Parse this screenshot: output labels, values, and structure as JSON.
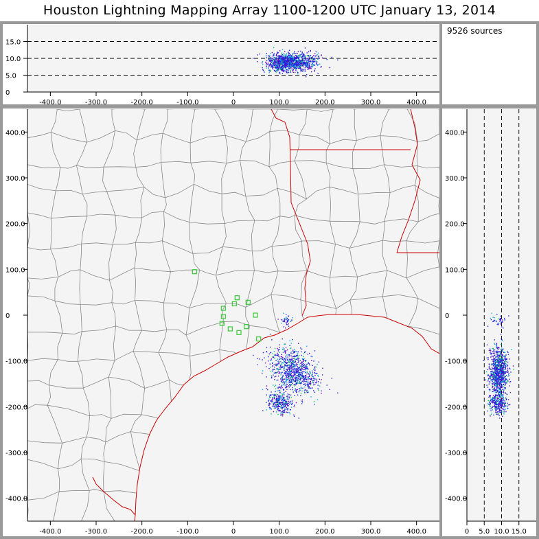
{
  "header": {
    "title": "Houston Lightning Mapping Array   1100-1200 UTC  January 13, 2014"
  },
  "info": {
    "source_count": "9526 sources"
  },
  "colors": {
    "frame": "#999999",
    "plot_bg": "#f4f4f4",
    "county": "#888888",
    "state": "#cc0000",
    "station": "#33cc33"
  },
  "chart_data": [
    {
      "panel": "altitude-vs-x",
      "type": "scatter",
      "xlim": [
        -450,
        450
      ],
      "ylim": [
        0,
        20
      ],
      "x_ticks": [
        {
          "value": -400,
          "label": "-400.0"
        },
        {
          "value": -300,
          "label": "-300.0"
        },
        {
          "value": -200,
          "label": "-200.0"
        },
        {
          "value": -100,
          "label": "-100.0"
        },
        {
          "value": 0,
          "label": "0"
        },
        {
          "value": 100,
          "label": "100.0"
        },
        {
          "value": 200,
          "label": "200.0"
        },
        {
          "value": 300,
          "label": "300.0"
        },
        {
          "value": 400,
          "label": "400.0"
        }
      ],
      "y_ticks": [
        {
          "value": 0,
          "label": "0"
        },
        {
          "value": 5,
          "label": "5.0"
        },
        {
          "value": 10,
          "label": "10.0"
        },
        {
          "value": 15,
          "label": "15.0"
        }
      ],
      "dashed_levels": [
        5,
        10,
        15
      ]
    },
    {
      "panel": "plan-view",
      "type": "scatter",
      "xlim": [
        -450,
        450
      ],
      "ylim": [
        -450,
        450
      ],
      "x_ticks": [
        {
          "value": -400,
          "label": "-400.0"
        },
        {
          "value": -300,
          "label": "-300.0"
        },
        {
          "value": -200,
          "label": "-200.0"
        },
        {
          "value": -100,
          "label": "-100.0"
        },
        {
          "value": 0,
          "label": "0"
        },
        {
          "value": 100,
          "label": "100.0"
        },
        {
          "value": 200,
          "label": "200.0"
        },
        {
          "value": 300,
          "label": "300.0"
        },
        {
          "value": 400,
          "label": "400.0"
        }
      ],
      "y_ticks": [
        {
          "value": -400,
          "label": "-400.0"
        },
        {
          "value": -300,
          "label": "-300.0"
        },
        {
          "value": -200,
          "label": "-200.0"
        },
        {
          "value": -100,
          "label": "-100.0"
        },
        {
          "value": 0,
          "label": "0"
        },
        {
          "value": 100,
          "label": "100.0"
        },
        {
          "value": 200,
          "label": "200.0"
        },
        {
          "value": 300,
          "label": "300.0"
        },
        {
          "value": 400,
          "label": "400.0"
        }
      ],
      "source_clusters": [
        {
          "x": 130,
          "y": -120,
          "sx": 30,
          "sy": 20,
          "n": 900
        },
        {
          "x": 100,
          "y": -190,
          "sx": 15,
          "sy": 11,
          "n": 320
        },
        {
          "x": 115,
          "y": -10,
          "sx": 5,
          "sy": 6,
          "n": 40
        }
      ],
      "stations": [
        {
          "x": -85,
          "y": 95
        },
        {
          "x": -22,
          "y": 15
        },
        {
          "x": 2,
          "y": 25
        },
        {
          "x": 8,
          "y": 38
        },
        {
          "x": 32,
          "y": 28
        },
        {
          "x": -22,
          "y": -3
        },
        {
          "x": -25,
          "y": -18
        },
        {
          "x": -7,
          "y": -30
        },
        {
          "x": 12,
          "y": -38
        },
        {
          "x": 28,
          "y": -25
        },
        {
          "x": 48,
          "y": 0
        },
        {
          "x": 55,
          "y": -52
        }
      ]
    },
    {
      "panel": "y-vs-altitude",
      "type": "scatter",
      "xlim": [
        0,
        20
      ],
      "ylim": [
        -450,
        450
      ],
      "x_ticks": [
        {
          "value": 0,
          "label": "0"
        },
        {
          "value": 5,
          "label": "5.0"
        },
        {
          "value": 10,
          "label": "10.0"
        },
        {
          "value": 15,
          "label": "15.0"
        }
      ],
      "y_ticks": [
        {
          "value": -400,
          "label": "-400.0"
        },
        {
          "value": -300,
          "label": "-300.0"
        },
        {
          "value": -200,
          "label": "-200.0"
        },
        {
          "value": -100,
          "label": "-100.0"
        },
        {
          "value": 0,
          "label": "0"
        },
        {
          "value": 100,
          "label": "100.0"
        },
        {
          "value": 200,
          "label": "200.0"
        },
        {
          "value": 300,
          "label": "300.0"
        },
        {
          "value": 400,
          "label": "400.0"
        }
      ],
      "dashed_levels": [
        5,
        10,
        15
      ]
    }
  ]
}
